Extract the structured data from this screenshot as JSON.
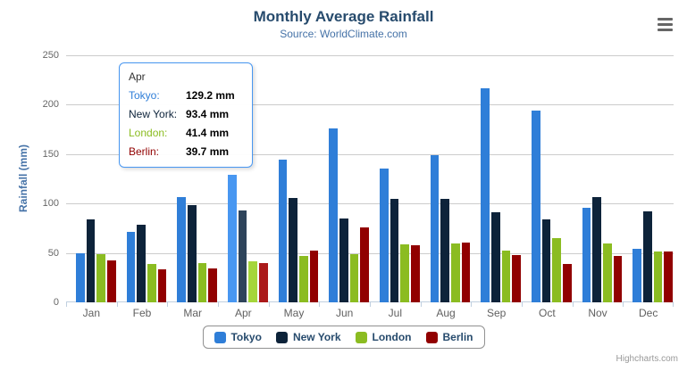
{
  "chart": {
    "title": "Monthly Average Rainfall",
    "subtitle": "Source: WorldClimate.com",
    "credit": "Highcharts.com"
  },
  "tooltip": {
    "header": "Apr",
    "rows": [
      {
        "label": "Tokyo:",
        "value": "129.2 mm",
        "color": "#2f7ed8"
      },
      {
        "label": "New York:",
        "value": "93.4 mm",
        "color": "#0d233a"
      },
      {
        "label": "London:",
        "value": "41.4 mm",
        "color": "#8bbc21"
      },
      {
        "label": "Berlin:",
        "value": "39.7 mm",
        "color": "#910000"
      }
    ]
  },
  "legend": {
    "items": [
      {
        "label": "Tokyo",
        "color": "#2f7ed8"
      },
      {
        "label": "New York",
        "color": "#0d233a"
      },
      {
        "label": "London",
        "color": "#8bbc21"
      },
      {
        "label": "Berlin",
        "color": "#910000"
      }
    ]
  },
  "chart_data": {
    "type": "bar",
    "title": "Monthly Average Rainfall",
    "subtitle": "Source: WorldClimate.com",
    "xlabel": "",
    "ylabel": "Rainfall (mm)",
    "categories": [
      "Jan",
      "Feb",
      "Mar",
      "Apr",
      "May",
      "Jun",
      "Jul",
      "Aug",
      "Sep",
      "Oct",
      "Nov",
      "Dec"
    ],
    "ylim": [
      0,
      250
    ],
    "yticks": [
      0,
      50,
      100,
      150,
      200,
      250
    ],
    "grid": true,
    "legend_position": "bottom",
    "hovered_category": "Apr",
    "hovered_category_index": 3,
    "colors": {
      "gridline": "#cccccc",
      "axisline": "#c0d0e0",
      "title_text": "#274b6d",
      "subtitle_text": "#4572a7",
      "axis_label_text": "#666666"
    },
    "series": [
      {
        "name": "Tokyo",
        "color": "#2f7ed8",
        "hover_color": "#4897f1",
        "values": [
          49.9,
          71.5,
          106.4,
          129.2,
          144.0,
          176.0,
          135.6,
          148.5,
          216.4,
          194.1,
          95.6,
          54.4
        ]
      },
      {
        "name": "New York",
        "color": "#0d233a",
        "hover_color": "#2e445b",
        "values": [
          83.6,
          78.8,
          98.5,
          93.4,
          106.0,
          84.5,
          105.0,
          104.3,
          91.2,
          83.5,
          106.6,
          92.3
        ]
      },
      {
        "name": "London",
        "color": "#8bbc21",
        "hover_color": "#a5d63b",
        "values": [
          48.9,
          38.8,
          39.3,
          41.4,
          47.0,
          48.3,
          59.0,
          59.6,
          52.4,
          65.2,
          59.3,
          51.2
        ]
      },
      {
        "name": "Berlin",
        "color": "#910000",
        "hover_color": "#ab1a1a",
        "values": [
          42.4,
          33.2,
          34.5,
          39.7,
          52.6,
          75.5,
          57.4,
          60.4,
          47.6,
          39.1,
          46.8,
          51.1
        ]
      }
    ]
  }
}
